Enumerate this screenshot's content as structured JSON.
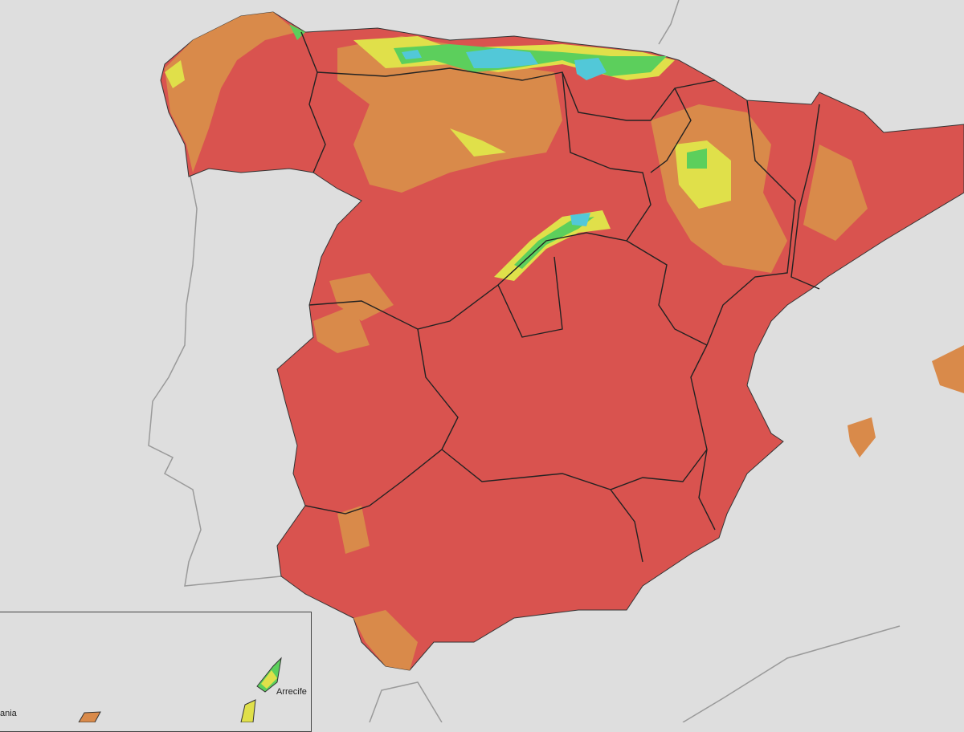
{
  "map": {
    "colors": {
      "background": "#dedede",
      "very_high": "#d9534f",
      "high": "#d98a4a",
      "moderate": "#e0e04a",
      "low": "#5ccf5c",
      "very_low": "#52c8d8",
      "borders": "#222222",
      "coast_other": "#9a9a9a"
    },
    "inset": {
      "labels": {
        "arrecife": "Arrecife",
        "partial_left": "ania"
      }
    }
  }
}
